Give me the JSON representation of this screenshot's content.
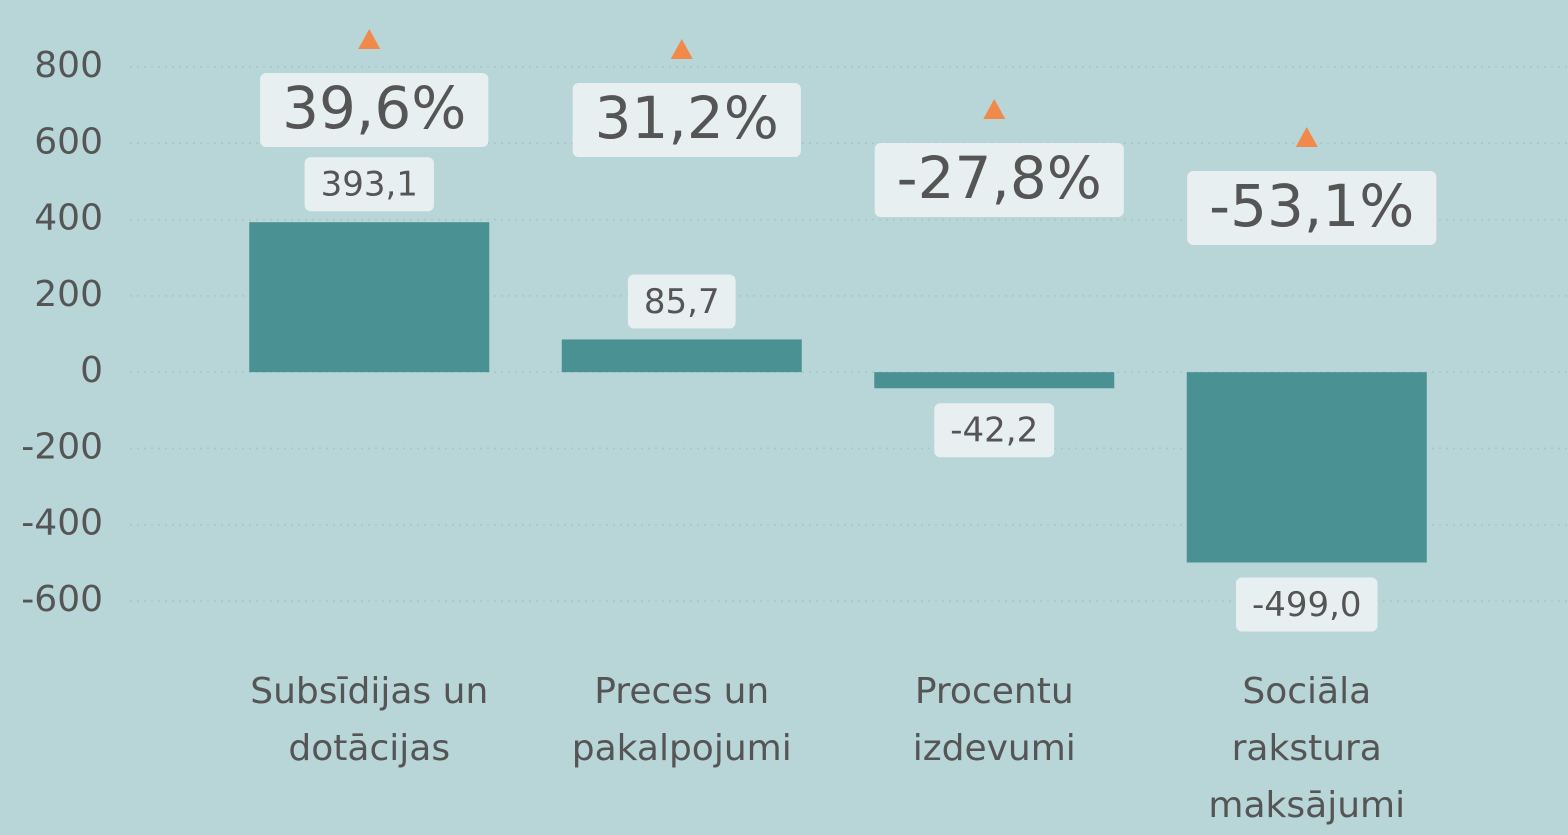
{
  "chart_data": {
    "type": "bar",
    "categories": [
      "Subsīdijas un dotācijas",
      "Preces un pakalpojumi",
      "Procentu izdevumi",
      "Sociāla rakstura maksājumi"
    ],
    "values": [
      393.1,
      85.7,
      -42.2,
      -499.0
    ],
    "value_labels": [
      "393,1",
      "85,7",
      "-42,2",
      "-499,0"
    ],
    "changes": [
      39.6,
      31.2,
      -27.8,
      -53.1
    ],
    "change_labels": [
      "39,6%",
      "31,2%",
      "-27,8%",
      "-53,1%"
    ],
    "color": "#4a9194",
    "ylim": [
      -600,
      800
    ],
    "yticks": [
      -600,
      -400,
      -200,
      0,
      200,
      400,
      600,
      800
    ],
    "grid": true
  }
}
